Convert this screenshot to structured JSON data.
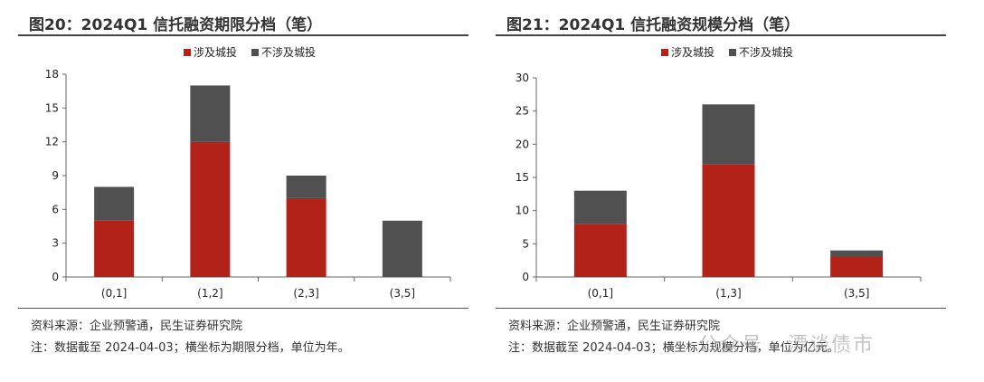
{
  "colors": {
    "series1": "#B22218",
    "series2": "#505050",
    "axis": "#666666"
  },
  "charts": [
    {
      "title": "图20：2024Q1 信托融资期限分档（笔）",
      "source": "资料来源：企业预警通，民生证券研究院",
      "note": "注：数据截至 2024-04-03；横坐标为期限分档，单位为年。",
      "chart_data": {
        "type": "bar",
        "stacked": true,
        "categories": [
          "(0,1]",
          "(1,2]",
          "(2,3]",
          "(3,5]"
        ],
        "series": [
          {
            "name": "涉及城投",
            "values": [
              5,
              12,
              7,
              0
            ]
          },
          {
            "name": "不涉及城投",
            "values": [
              3,
              5,
              2,
              5
            ]
          }
        ],
        "ylim": [
          0,
          18
        ],
        "yticks": [
          0,
          3,
          6,
          9,
          12,
          15,
          18
        ],
        "legend": "top-center",
        "grid": false
      }
    },
    {
      "title": "图21：2024Q1 信托融资规模分档（笔）",
      "source": "资料来源：企业预警通，民生证券研究院",
      "note": "注：数据截至 2024-04-03；横坐标为规模分档，单位为亿元。",
      "chart_data": {
        "type": "bar",
        "stacked": true,
        "categories": [
          "(0,1]",
          "(1,3]",
          "(3,5]"
        ],
        "series": [
          {
            "name": "涉及城投",
            "values": [
              8,
              17,
              3
            ]
          },
          {
            "name": "不涉及城投",
            "values": [
              5,
              9,
              1
            ]
          }
        ],
        "ylim": [
          0,
          30
        ],
        "yticks": [
          0,
          5,
          10,
          15,
          20,
          25,
          30
        ],
        "legend": "top-center",
        "grid": false
      }
    }
  ],
  "watermark": "公众号 · 漂谈债市"
}
